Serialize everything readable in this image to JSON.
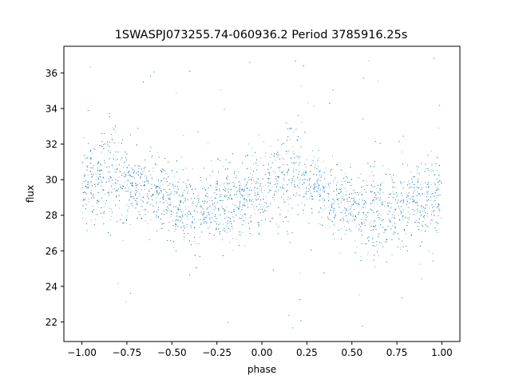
{
  "chart_data": {
    "type": "scatter",
    "title": "1SWASPJ073255.74-060936.2 Period 3785916.25s",
    "xlabel": "phase",
    "ylabel": "flux",
    "xlim": [
      -1.1,
      1.1
    ],
    "ylim": [
      20.9,
      37.5
    ],
    "x_ticks": [
      -1.0,
      -0.75,
      -0.5,
      -0.25,
      0.0,
      0.25,
      0.5,
      0.75,
      1.0
    ],
    "x_tick_labels": [
      "−1.00",
      "−0.75",
      "−0.50",
      "−0.25",
      "0.00",
      "0.25",
      "0.50",
      "0.75",
      "1.00"
    ],
    "y_ticks": [
      22,
      24,
      26,
      28,
      30,
      32,
      34,
      36
    ],
    "y_tick_labels": [
      "22",
      "24",
      "26",
      "28",
      "30",
      "32",
      "34",
      "36"
    ],
    "grid": false,
    "legend": "none",
    "point_color": "#1f77b4",
    "series": [
      {
        "phase_flux_profile": {
          "x": [
            -1.0,
            -0.95,
            -0.9,
            -0.85,
            -0.8,
            -0.75,
            -0.7,
            -0.65,
            -0.6,
            -0.55,
            -0.5,
            -0.45,
            -0.4,
            -0.35,
            -0.3,
            -0.25,
            -0.2,
            -0.15,
            -0.1,
            -0.05,
            0.0,
            0.05,
            0.1,
            0.15,
            0.2,
            0.25,
            0.3,
            0.35,
            0.4,
            0.45,
            0.5,
            0.55,
            0.6,
            0.65,
            0.7,
            0.75,
            0.8,
            0.85,
            0.9,
            0.95,
            1.0
          ],
          "y_median": [
            29.4,
            29.9,
            30.0,
            30.2,
            30.3,
            29.6,
            29.5,
            29.3,
            29.1,
            29.0,
            28.9,
            28.3,
            28.3,
            28.2,
            28.4,
            28.6,
            28.8,
            28.9,
            29.0,
            29.3,
            29.4,
            29.9,
            30.0,
            30.2,
            30.3,
            29.6,
            29.5,
            29.3,
            29.1,
            29.0,
            28.9,
            28.3,
            28.3,
            28.2,
            28.4,
            28.6,
            28.8,
            28.9,
            29.0,
            29.3,
            29.4
          ],
          "y_spread": [
            1.1,
            1.1,
            1.2,
            1.4,
            1.5,
            1.0,
            0.9,
            0.9,
            1.0,
            1.1,
            1.0,
            1.1,
            1.1,
            1.2,
            1.1,
            1.1,
            1.1,
            1.0,
            1.0,
            1.1,
            1.1,
            1.1,
            1.2,
            1.4,
            1.5,
            1.0,
            0.9,
            0.9,
            1.0,
            1.1,
            1.0,
            1.1,
            1.1,
            1.2,
            1.1,
            1.1,
            1.1,
            1.0,
            1.0,
            1.1,
            1.1
          ]
        }
      }
    ]
  }
}
